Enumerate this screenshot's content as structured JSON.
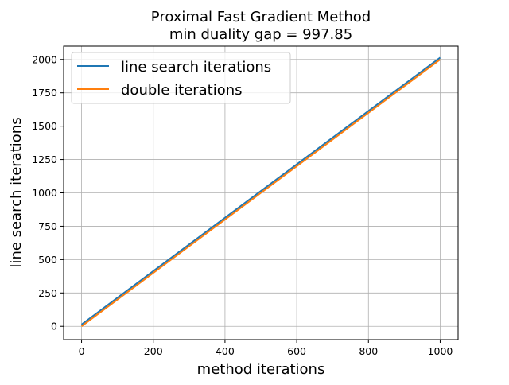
{
  "chart_data": {
    "type": "line",
    "title": [
      "Proximal Fast Gradient Method",
      "min duality gap = 997.85"
    ],
    "xlabel": "method iterations",
    "ylabel": "line search iterations",
    "xlim": [
      -50,
      1050
    ],
    "ylim": [
      -100,
      2100
    ],
    "xticks": [
      0,
      200,
      400,
      600,
      800,
      1000
    ],
    "yticks": [
      0,
      250,
      500,
      750,
      1000,
      1250,
      1500,
      1750,
      2000
    ],
    "grid": true,
    "legend_position": "top-left",
    "series": [
      {
        "name": "line search iterations",
        "color": "#1f77b4",
        "x": [
          0,
          1000
        ],
        "y": [
          14,
          2014
        ]
      },
      {
        "name": "double iterations",
        "color": "#ff7f0e",
        "x": [
          0,
          1000
        ],
        "y": [
          0,
          2000
        ]
      }
    ]
  }
}
